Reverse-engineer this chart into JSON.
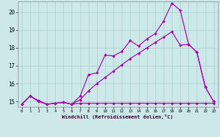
{
  "xlabel": "Windchill (Refroidissement éolien,°C)",
  "background_color": "#cce8e8",
  "grid_color": "#aacccc",
  "line_color": "#aa00aa",
  "xlim": [
    -0.5,
    23.5
  ],
  "ylim": [
    14.7,
    20.6
  ],
  "yticks": [
    15,
    16,
    17,
    18,
    19,
    20
  ],
  "xticks": [
    0,
    1,
    2,
    3,
    4,
    5,
    6,
    7,
    8,
    9,
    10,
    11,
    12,
    13,
    14,
    15,
    16,
    17,
    18,
    19,
    20,
    21,
    22,
    23
  ],
  "line1_x": [
    0,
    1,
    2,
    3,
    4,
    5,
    6,
    7,
    8,
    9,
    10,
    11,
    12,
    13,
    14,
    15,
    16,
    17,
    18,
    19,
    20,
    21,
    22,
    23
  ],
  "line1_y": [
    14.85,
    15.3,
    15.0,
    14.85,
    14.9,
    14.95,
    14.85,
    14.9,
    14.9,
    14.9,
    14.9,
    14.9,
    14.9,
    14.9,
    14.9,
    14.9,
    14.9,
    14.9,
    14.9,
    14.9,
    14.9,
    14.9,
    14.9,
    14.9
  ],
  "line2_x": [
    0,
    1,
    2,
    3,
    4,
    5,
    6,
    7,
    8,
    9,
    10,
    11,
    12,
    13,
    14,
    15,
    16,
    17,
    18,
    19,
    20,
    21,
    22,
    23
  ],
  "line2_y": [
    14.85,
    15.3,
    15.05,
    14.85,
    14.9,
    14.95,
    14.85,
    15.1,
    15.6,
    16.0,
    16.35,
    16.7,
    17.05,
    17.4,
    17.7,
    18.0,
    18.3,
    18.6,
    18.9,
    18.15,
    18.2,
    17.75,
    15.8,
    15.0
  ],
  "line3_x": [
    0,
    1,
    2,
    3,
    4,
    5,
    6,
    7,
    8,
    9,
    10,
    11,
    12,
    13,
    14,
    15,
    16,
    17,
    18,
    19,
    20,
    21,
    22,
    23
  ],
  "line3_y": [
    14.85,
    15.3,
    15.05,
    14.85,
    14.9,
    14.95,
    14.85,
    15.3,
    16.5,
    16.6,
    17.6,
    17.55,
    17.8,
    18.4,
    18.1,
    18.5,
    18.8,
    19.5,
    20.5,
    20.1,
    18.2,
    17.75,
    15.8,
    15.0
  ]
}
